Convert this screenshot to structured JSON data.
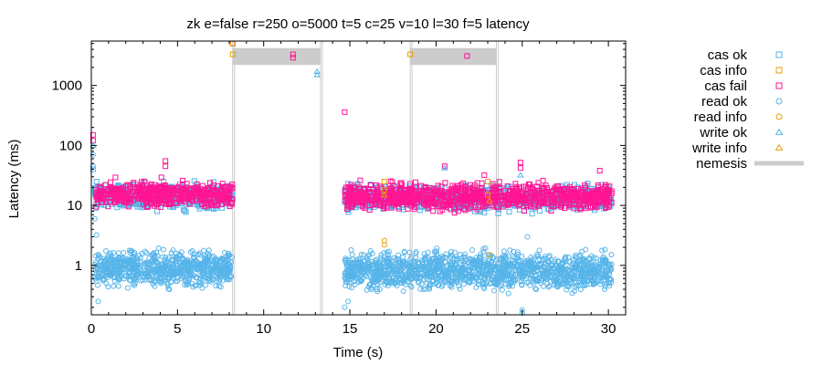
{
  "chart_data": {
    "type": "scatter",
    "title": "zk e=false r=250 o=5000 t=5 c=25 v=10 l=30 f=5 latency",
    "xlabel": "Time (s)",
    "ylabel": "Latency (ms)",
    "xlim": [
      0,
      31
    ],
    "ylim": [
      0.15,
      5500
    ],
    "yscale": "log",
    "x_ticks": [
      0,
      5,
      10,
      15,
      20,
      25,
      30
    ],
    "x_tick_labels": [
      "0",
      "5",
      "10",
      "15",
      "20",
      "25",
      "30"
    ],
    "y_ticks": [
      1,
      10,
      100,
      1000
    ],
    "y_tick_labels": [
      "1",
      "10",
      "100",
      "1000"
    ],
    "legend_position": "right",
    "grid": false,
    "series": [
      {
        "name": "cas ok",
        "color": "#56b4e9",
        "marker": "square",
        "clusters": [
          {
            "x": [
              0.2,
              8.2
            ],
            "y": [
              7,
              28
            ]
          },
          {
            "x": [
              14.7,
              30.2
            ],
            "y": [
              7,
              25
            ]
          }
        ],
        "points": [
          {
            "x": 0.1,
            "y": 40
          },
          {
            "x": 0.3,
            "y": 25
          }
        ]
      },
      {
        "name": "cas info",
        "color": "#e69f00",
        "marker": "square",
        "points": [
          {
            "x": 8.2,
            "y": 5000
          },
          {
            "x": 8.2,
            "y": 3300
          },
          {
            "x": 18.5,
            "y": 3300
          },
          {
            "x": 17.0,
            "y": 25
          },
          {
            "x": 17.0,
            "y": 18
          },
          {
            "x": 23.0,
            "y": 15
          },
          {
            "x": 23.0,
            "y": 25
          }
        ]
      },
      {
        "name": "cas fail",
        "color": "#ff1493",
        "marker": "square",
        "clusters": [
          {
            "x": [
              0.2,
              8.2
            ],
            "y": [
              8,
              30
            ]
          },
          {
            "x": [
              14.7,
              30.2
            ],
            "y": [
              7,
              28
            ]
          }
        ],
        "points": [
          {
            "x": 8.2,
            "y": 5000
          },
          {
            "x": 11.7,
            "y": 3300
          },
          {
            "x": 11.7,
            "y": 2900
          },
          {
            "x": 14.7,
            "y": 360
          },
          {
            "x": 21.8,
            "y": 3100
          },
          {
            "x": 0.1,
            "y": 150
          },
          {
            "x": 0.1,
            "y": 120
          },
          {
            "x": 4.3,
            "y": 55
          },
          {
            "x": 4.3,
            "y": 45
          },
          {
            "x": 20.5,
            "y": 45
          },
          {
            "x": 22.8,
            "y": 32
          },
          {
            "x": 24.9,
            "y": 52
          },
          {
            "x": 24.9,
            "y": 42
          },
          {
            "x": 29.5,
            "y": 38
          }
        ]
      },
      {
        "name": "read ok",
        "color": "#56b4e9",
        "marker": "circle",
        "clusters": [
          {
            "x": [
              0.2,
              8.2
            ],
            "y": [
              0.35,
              2.2
            ]
          },
          {
            "x": [
              14.7,
              30.2
            ],
            "y": [
              0.3,
              2.2
            ]
          }
        ],
        "points": [
          {
            "x": 0.1,
            "y": 70
          },
          {
            "x": 0.1,
            "y": 45
          },
          {
            "x": 0.2,
            "y": 6
          },
          {
            "x": 0.3,
            "y": 3.2
          },
          {
            "x": 0.4,
            "y": 0.25
          },
          {
            "x": 14.7,
            "y": 0.2
          },
          {
            "x": 14.9,
            "y": 0.25
          },
          {
            "x": 25.0,
            "y": 0.16
          },
          {
            "x": 25.0,
            "y": 0.18
          },
          {
            "x": 25.3,
            "y": 3.0
          }
        ]
      },
      {
        "name": "read info",
        "color": "#e69f00",
        "marker": "circle",
        "points": [
          {
            "x": 17.0,
            "y": 2.6
          },
          {
            "x": 17.0,
            "y": 2.2
          },
          {
            "x": 23.1,
            "y": 1.5
          }
        ]
      },
      {
        "name": "write ok",
        "color": "#56b4e9",
        "marker": "triangle",
        "points": [
          {
            "x": 13.1,
            "y": 1700
          },
          {
            "x": 13.1,
            "y": 1500
          },
          {
            "x": 20.5,
            "y": 42
          },
          {
            "x": 24.9,
            "y": 32
          },
          {
            "x": 0.1,
            "y": 100
          }
        ]
      },
      {
        "name": "write info",
        "color": "#e69f00",
        "marker": "triangle",
        "points": [
          {
            "x": 23.1,
            "y": 12
          },
          {
            "x": 17.0,
            "y": 15
          }
        ]
      },
      {
        "name": "nemesis",
        "color": "#cccccc",
        "marker": "band",
        "intervals": [
          [
            8.2,
            13.3
          ],
          [
            18.5,
            23.5
          ]
        ]
      }
    ]
  }
}
